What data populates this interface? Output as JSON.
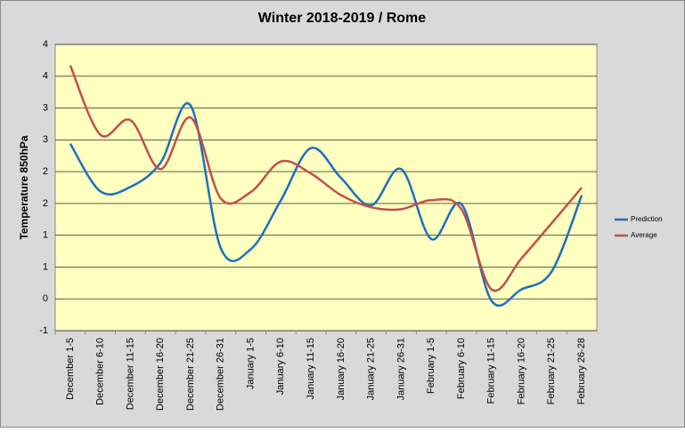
{
  "chart_data": {
    "type": "line",
    "title": "Winter 2018-2019 / Rome",
    "y_label": "Temperature 850hPa",
    "categories": [
      "December 1-5",
      "December 6-10",
      "December 11-15",
      "December 16-20",
      "December 21-25",
      "December 26-31",
      "January 1-5",
      "January 6-10",
      "January 11-15",
      "January 16-20",
      "January 21-25",
      "January 26-31",
      "February 1-5",
      "February 6-10",
      "February 11-15",
      "February 16-20",
      "February 21-25",
      "February 26-28"
    ],
    "series": [
      {
        "name": "Prediction",
        "color": "#1f6fbf",
        "values": [
          2.44,
          1.69,
          1.76,
          2.14,
          3.04,
          0.8,
          0.78,
          1.55,
          2.37,
          1.9,
          1.47,
          2.04,
          0.94,
          1.49,
          -0.03,
          0.15,
          0.43,
          1.63
        ]
      },
      {
        "name": "Average",
        "color": "#c0504d",
        "values": [
          3.67,
          2.58,
          2.81,
          2.04,
          2.85,
          1.58,
          1.68,
          2.16,
          1.97,
          1.63,
          1.44,
          1.41,
          1.55,
          1.41,
          0.15,
          0.64,
          1.19,
          1.75
        ]
      }
    ],
    "ylim": [
      -0.5,
      4
    ],
    "yticks": [
      {
        "value": -0.5,
        "label": "-1"
      },
      0,
      {
        "value": 0.5,
        "label": "1"
      },
      1,
      {
        "value": 1.5,
        "label": "2"
      },
      2,
      {
        "value": 2.5,
        "label": "3"
      },
      3,
      {
        "value": 3.5,
        "label": "4"
      },
      4
    ],
    "grid": true,
    "legend": "right",
    "smooth": true
  }
}
